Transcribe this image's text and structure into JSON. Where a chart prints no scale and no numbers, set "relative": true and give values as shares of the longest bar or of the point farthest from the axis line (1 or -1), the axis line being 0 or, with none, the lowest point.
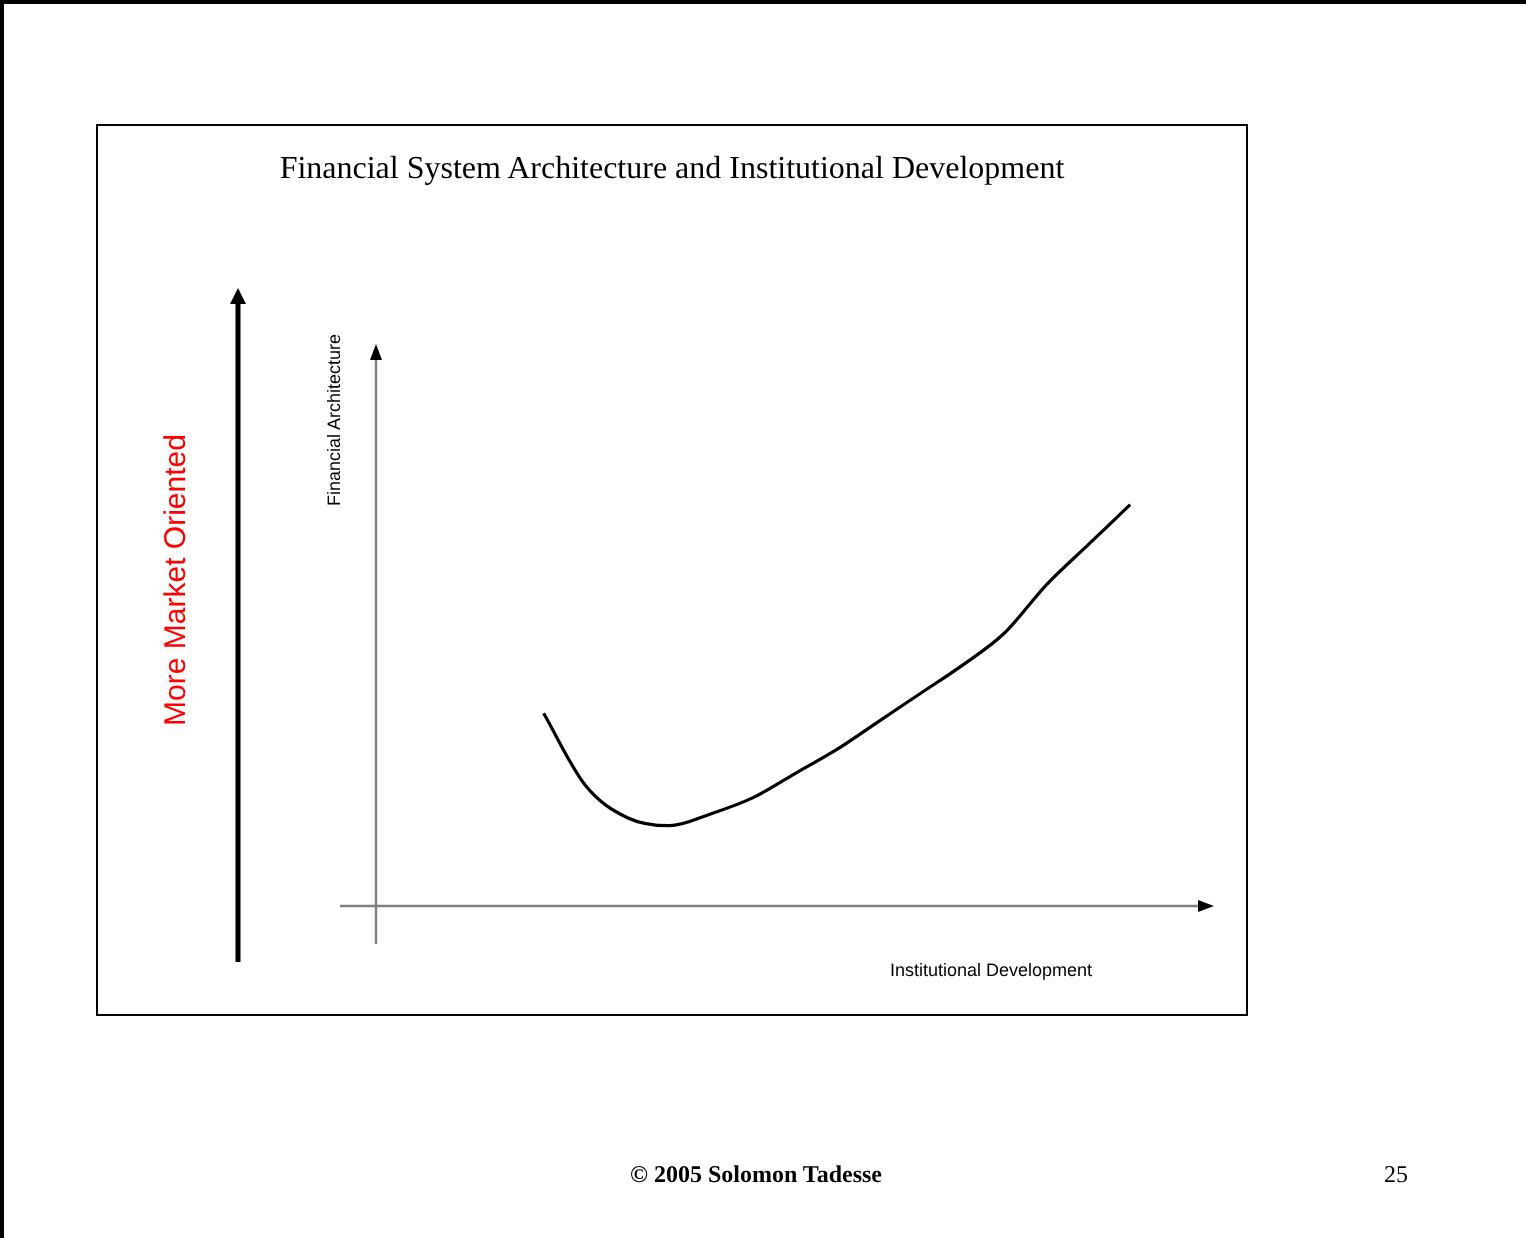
{
  "chart_data": {
    "type": "line",
    "title": "Financial System Architecture and Institutional Development",
    "xlabel": "Institutional Development",
    "ylabel": "Financial Architecture",
    "relative": true,
    "marker": "none",
    "categories": [
      null,
      null,
      null,
      null,
      null,
      null,
      null,
      null,
      null,
      null,
      null,
      null,
      null,
      null,
      null,
      null,
      null,
      null,
      null,
      null,
      null
    ],
    "series": [
      {
        "color": "#000000",
        "values": [
          null,
          null,
          null,
          null,
          0.48,
          0.3,
          0.22,
          0.2,
          0.23,
          0.27,
          0.33,
          0.39,
          0.46,
          0.53,
          0.6,
          0.68,
          0.8,
          0.9,
          1,
          null,
          null
        ]
      }
    ],
    "annotations": [
      "More Market Oriented",
      "© 2005 Solomon Tadesse",
      "25"
    ]
  }
}
